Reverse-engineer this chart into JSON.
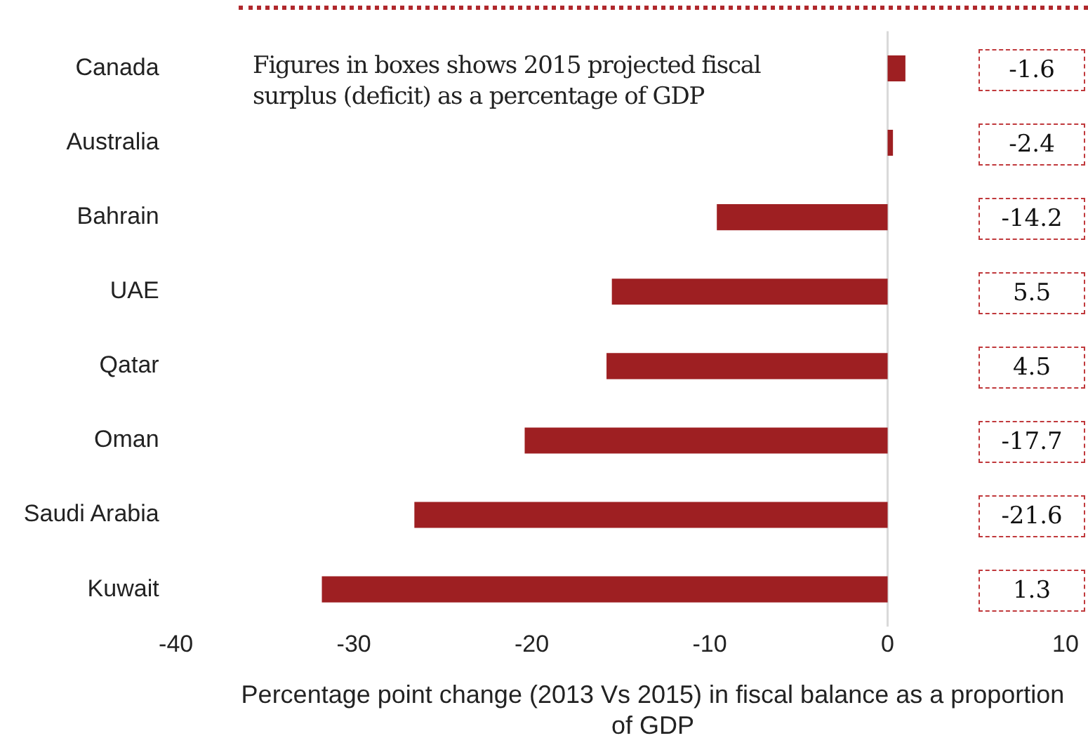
{
  "chart_data": {
    "type": "bar",
    "orientation": "horizontal",
    "categories": [
      "Canada",
      "Australia",
      "Bahrain",
      "UAE",
      "Qatar",
      "Oman",
      "Saudi Arabia",
      "Kuwait"
    ],
    "values": [
      1.0,
      0.3,
      -9.6,
      -15.5,
      -15.8,
      -20.4,
      -26.6,
      -31.8
    ],
    "color": "#9e1f22",
    "xlim": [
      -40,
      10
    ],
    "xticks": [
      -40,
      -30,
      -20,
      -10,
      0,
      10
    ],
    "xlabel": "Percentage point change (2013 Vs 2015) in fiscal balance as a proportion of GDP",
    "grid": false,
    "legend": false,
    "ref_lines": [
      {
        "axis": "x",
        "value": 0,
        "color": "#d9d9d9"
      }
    ],
    "annotations": [
      "Figures in boxes shows 2015 projected fiscal surplus (deficit) as a percentage of GDP",
      "-1.6",
      "-2.4",
      "-14.2",
      "5.5",
      "4.5",
      "-17.7",
      "-21.6",
      "1.3"
    ]
  }
}
